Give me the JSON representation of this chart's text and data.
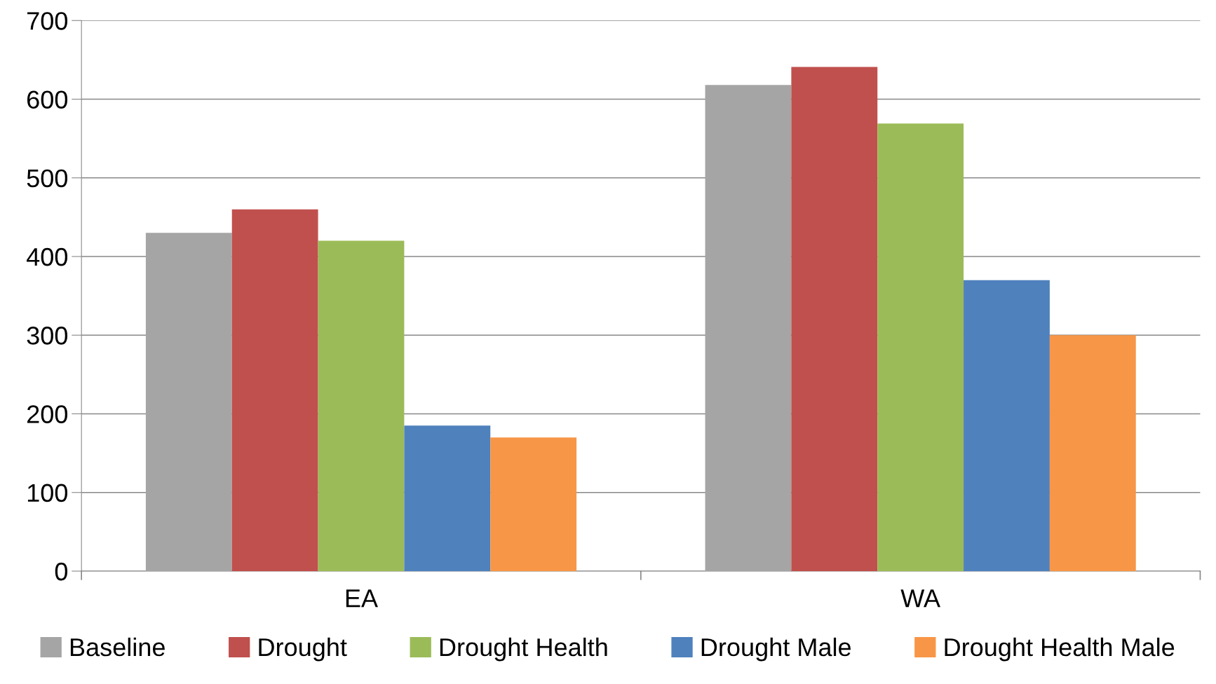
{
  "chart_data": {
    "type": "bar",
    "categories": [
      "EA",
      "WA"
    ],
    "series": [
      {
        "name": "Baseline",
        "color": "#a5a5a5",
        "values": [
          430,
          618
        ]
      },
      {
        "name": "Drought",
        "color": "#c0504d",
        "values": [
          460,
          641
        ]
      },
      {
        "name": "Drought Health",
        "color": "#9bbb59",
        "values": [
          420,
          569
        ]
      },
      {
        "name": "Drought Male",
        "color": "#4f81bd",
        "values": [
          185,
          370
        ]
      },
      {
        "name": "Drought Health Male",
        "color": "#f79646",
        "values": [
          170,
          300
        ]
      }
    ],
    "ylim": [
      0,
      700
    ],
    "yticks": [
      0,
      100,
      200,
      300,
      400,
      500,
      600,
      700
    ],
    "grid": "y",
    "legend": "bottom"
  }
}
